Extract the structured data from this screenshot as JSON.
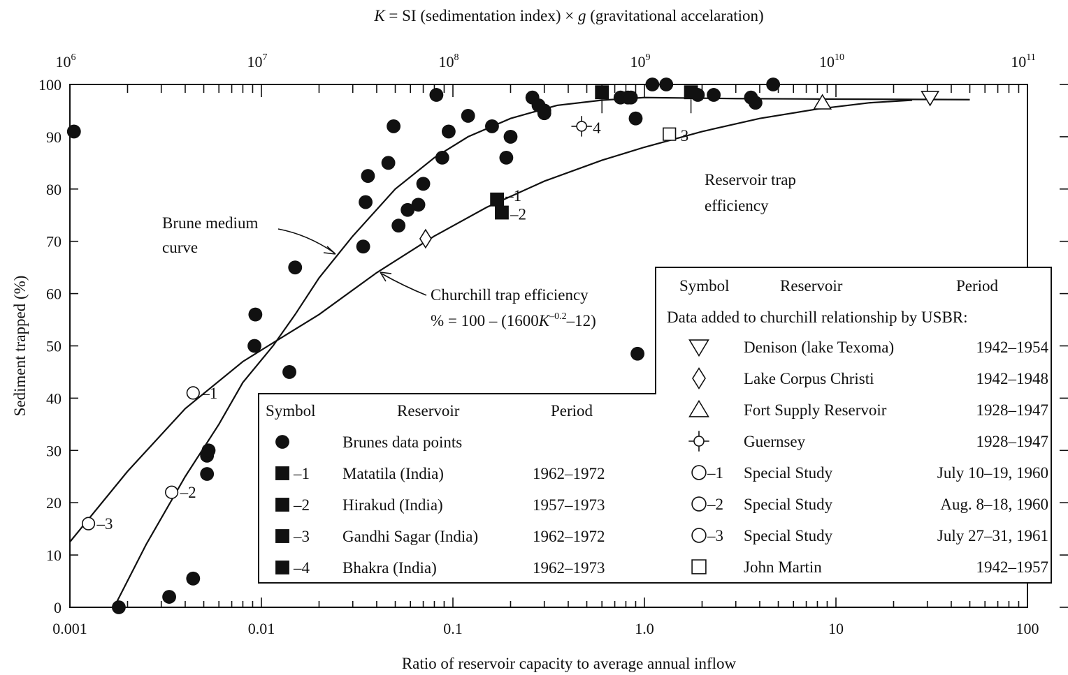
{
  "chart_data": {
    "type": "scatter",
    "title": "",
    "xlabel": "Ratio of reservoir capacity to average annual inflow",
    "ylabel": "Sediment trapped (%)",
    "x_scale": "log",
    "xlim": [
      0.001,
      100
    ],
    "ylim": [
      0,
      100
    ],
    "x_tick_labels": [
      "0.001",
      "0.01",
      "0.1",
      "1.0",
      "10",
      "100"
    ],
    "y_tick_labels": [
      "0",
      "10",
      "20",
      "30",
      "40",
      "50",
      "60",
      "70",
      "80",
      "90",
      "100"
    ],
    "grid": false,
    "top_axis": {
      "label_parts": [
        "K",
        " = SI (sedimentation index) × ",
        "g",
        " (gravitational accelaration)"
      ],
      "scale": "log",
      "range": [
        1000000,
        100000000000
      ],
      "tick_labels": [
        {
          "value": 1000000,
          "base": "10",
          "exp": "6"
        },
        {
          "value": 10000000,
          "base": "10",
          "exp": "7"
        },
        {
          "value": 100000000,
          "base": "10",
          "exp": "8"
        },
        {
          "value": 1000000000,
          "base": "10",
          "exp": "9"
        },
        {
          "value": 10000000000,
          "base": "10",
          "exp": "10"
        },
        {
          "value": 100000000000,
          "base": "10",
          "exp": "11"
        }
      ]
    },
    "curves": [
      {
        "label": "Brune medium curve",
        "points": [
          [
            0.0017,
            0
          ],
          [
            0.0025,
            12
          ],
          [
            0.004,
            25
          ],
          [
            0.006,
            35
          ],
          [
            0.008,
            43
          ],
          [
            0.0115,
            50
          ],
          [
            0.015,
            56
          ],
          [
            0.02,
            63
          ],
          [
            0.03,
            71
          ],
          [
            0.05,
            80
          ],
          [
            0.08,
            86
          ],
          [
            0.12,
            90
          ],
          [
            0.2,
            93.5
          ],
          [
            0.35,
            96
          ],
          [
            0.6,
            97
          ],
          [
            1.0,
            97.5
          ],
          [
            3,
            97.3
          ],
          [
            10,
            97.2
          ],
          [
            50,
            97.1
          ]
        ]
      },
      {
        "label": "Churchill trap efficiency",
        "points": [
          [
            0.001,
            12.5
          ],
          [
            0.002,
            26
          ],
          [
            0.004,
            38
          ],
          [
            0.008,
            47
          ],
          [
            0.012,
            51
          ],
          [
            0.02,
            56
          ],
          [
            0.04,
            64
          ],
          [
            0.08,
            71
          ],
          [
            0.15,
            76.5
          ],
          [
            0.3,
            81.5
          ],
          [
            0.6,
            85.5
          ],
          [
            1.0,
            88
          ],
          [
            2,
            91
          ],
          [
            4,
            93.5
          ],
          [
            8,
            95.3
          ],
          [
            15,
            96.5
          ],
          [
            25,
            97
          ]
        ]
      }
    ],
    "annotations": {
      "brune_label": [
        "Brune medium",
        "curve"
      ],
      "churchill_label": [
        "Churchill trap efficiency"
      ],
      "churchill_formula": {
        "prefix": "% = 100 – (1600",
        "k": "K",
        "exp": "–0.2",
        "suffix": "–12)"
      },
      "reservoir_label": [
        "Reservoir trap",
        "efficiency"
      ]
    },
    "series": [
      {
        "name": "Brunes data points",
        "marker": "filled-circle",
        "x": [
          0.00105,
          0.0018,
          0.0033,
          0.0044,
          0.0052,
          0.0052,
          0.0053,
          0.0092,
          0.0093,
          0.014,
          0.015,
          0.034,
          0.035,
          0.036,
          0.046,
          0.049,
          0.052,
          0.058,
          0.066,
          0.07,
          0.082,
          0.088,
          0.095,
          0.12,
          0.16,
          0.19,
          0.2,
          0.26,
          0.28,
          0.3,
          0.3,
          0.75,
          0.82,
          0.85,
          0.9,
          0.92,
          1.1,
          1.3,
          1.9,
          2.3,
          3.6,
          3.8,
          4.7
        ],
        "y": [
          91,
          0,
          2,
          5.5,
          25.5,
          29,
          30,
          50,
          56,
          45,
          65,
          69,
          77.5,
          82.5,
          85,
          92,
          73,
          76,
          77,
          81,
          98,
          86,
          91,
          94,
          92,
          86,
          90,
          97.5,
          96,
          94.5,
          95,
          97.5,
          97.5,
          97.5,
          93.5,
          48.5,
          100,
          100,
          98,
          98,
          97.5,
          96.5,
          100
        ]
      },
      {
        "name": "Matatila (India)",
        "symbol_label": "–1",
        "period": "1962–1972",
        "marker": "filled-square",
        "x": [
          0.17
        ],
        "y": [
          78
        ],
        "point_label": "–1"
      },
      {
        "name": "Hirakud (India)",
        "symbol_label": "–2",
        "period": "1957–1973",
        "marker": "filled-square",
        "x": [
          0.18
        ],
        "y": [
          75.5
        ],
        "point_label": "–2"
      },
      {
        "name": "Gandhi Sagar (India)",
        "symbol_label": "–3",
        "period": "1962–1972",
        "marker": "filled-square",
        "x": [
          1.75
        ],
        "y": [
          98.5
        ],
        "point_label": ""
      },
      {
        "name": "Bhakra (India)",
        "symbol_label": "–4",
        "period": "1962–1973",
        "marker": "filled-square",
        "x": [
          0.6
        ],
        "y": [
          98.5
        ],
        "point_label": ""
      },
      {
        "name": "Denison (lake Texoma)",
        "period": "1942–1954",
        "marker": "open-triangle-down",
        "x": [
          31
        ],
        "y": [
          97.5
        ]
      },
      {
        "name": "Lake Corpus Christi",
        "period": "1942–1948",
        "marker": "open-diamond",
        "x": [
          0.072
        ],
        "y": [
          70.5
        ]
      },
      {
        "name": "Fort Supply Reservoir",
        "period": "1928–1947",
        "marker": "open-triangle-up",
        "x": [
          8.5
        ],
        "y": [
          96.5
        ]
      },
      {
        "name": "Guernsey",
        "period": "1928–1947",
        "marker": "open-circle-cross",
        "x": [
          0.47
        ],
        "y": [
          92
        ],
        "point_label": "4"
      },
      {
        "name": "Special Study",
        "symbol_label": "–1",
        "period": "July 10–19, 1960",
        "marker": "open-circle",
        "x": [
          0.0044
        ],
        "y": [
          41
        ],
        "point_label": "–1"
      },
      {
        "name": "Special Study",
        "symbol_label": "–2",
        "period": "Aug. 8–18, 1960",
        "marker": "open-circle",
        "x": [
          0.0034
        ],
        "y": [
          22
        ],
        "point_label": "–2"
      },
      {
        "name": "Special Study",
        "symbol_label": "–3",
        "period": "July 27–31, 1961",
        "marker": "open-circle",
        "x": [
          0.00125
        ],
        "y": [
          16
        ],
        "point_label": "–3"
      },
      {
        "name": "John Martin",
        "period": "1942–1957",
        "marker": "open-square",
        "x": [
          1.35
        ],
        "y": [
          90.5
        ],
        "point_label": "3"
      }
    ],
    "legend_left": {
      "header": [
        "Symbol",
        "Reservoir",
        "Period"
      ],
      "rows": [
        {
          "marker": "filled-circle",
          "symbol": "",
          "reservoir": "Brunes data points",
          "period": ""
        },
        {
          "marker": "filled-square",
          "symbol": "–1",
          "reservoir": "Matatila (India)",
          "period": "1962–1972"
        },
        {
          "marker": "filled-square",
          "symbol": "–2",
          "reservoir": "Hirakud (India)",
          "period": "1957–1973"
        },
        {
          "marker": "filled-square",
          "symbol": "–3",
          "reservoir": "Gandhi Sagar (India)",
          "period": "1962–1972"
        },
        {
          "marker": "filled-square",
          "symbol": "–4",
          "reservoir": "Bhakra (India)",
          "period": "1962–1973"
        }
      ]
    },
    "legend_right": {
      "header": [
        "Symbol",
        "Reservoir",
        "Period"
      ],
      "subheader": "Data added to churchill relationship by USBR:",
      "rows": [
        {
          "marker": "open-triangle-down",
          "symbol": "",
          "reservoir": "Denison (lake Texoma)",
          "period": "1942–1954"
        },
        {
          "marker": "open-diamond",
          "symbol": "",
          "reservoir": "Lake Corpus Christi",
          "period": "1942–1948"
        },
        {
          "marker": "open-triangle-up",
          "symbol": "",
          "reservoir": "Fort Supply Reservoir",
          "period": "1928–1947"
        },
        {
          "marker": "open-circle-cross",
          "symbol": "",
          "reservoir": "Guernsey",
          "period": "1928–1947"
        },
        {
          "marker": "open-circle",
          "symbol": "–1",
          "reservoir": "Special Study",
          "period": "July 10–19, 1960"
        },
        {
          "marker": "open-circle",
          "symbol": "–2",
          "reservoir": "Special Study",
          "period": "Aug. 8–18, 1960"
        },
        {
          "marker": "open-circle",
          "symbol": "–3",
          "reservoir": "Special Study",
          "period": "July 27–31, 1961"
        },
        {
          "marker": "open-square",
          "symbol": "",
          "reservoir": "John Martin",
          "period": "1942–1957"
        }
      ]
    }
  }
}
